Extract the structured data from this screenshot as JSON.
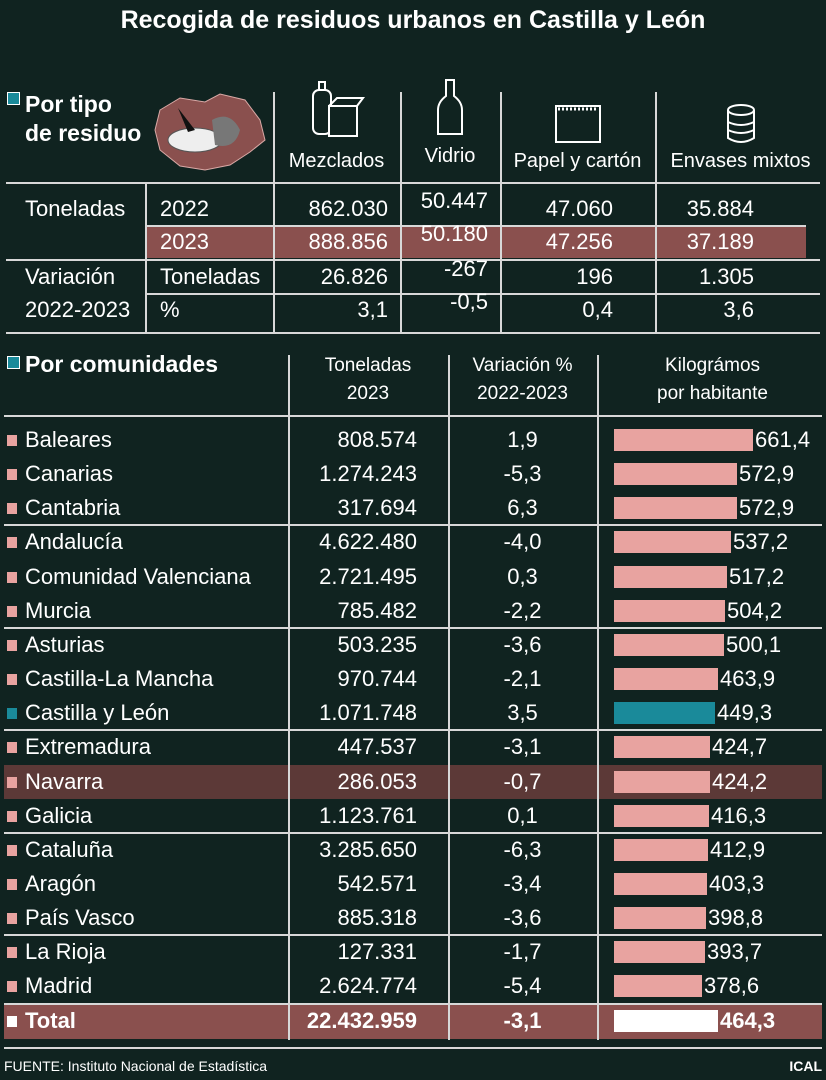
{
  "title": "Recogida de residuos urbanos en Castilla y León",
  "colors": {
    "background": "#102320",
    "highlight": "#8a504e",
    "bar": "#e8a3a0",
    "castilla_leon_bar": "#1a8a9a",
    "total_bar": "#ffffff"
  },
  "tipo": {
    "heading_line1": "Por tipo",
    "heading_line2": "de residuo",
    "columns": [
      {
        "label": "Mezclados",
        "icon": "bottle-and-carton-icon"
      },
      {
        "label": "Vidrio",
        "icon": "glass-bottle-icon"
      },
      {
        "label": "Papel y cartón",
        "icon": "notepad-icon"
      },
      {
        "label": "Envases mixtos",
        "icon": "can-icon"
      }
    ],
    "toneladas_label": "Toneladas",
    "variacion_label": "Variación",
    "variacion_years": "2022-2023",
    "rows": [
      {
        "label": "2022",
        "values": [
          "862.030",
          "50.447",
          "47.060",
          "35.884"
        ]
      },
      {
        "label": "2023",
        "values": [
          "888.856",
          "50.180",
          "47.256",
          "37.189"
        ]
      },
      {
        "label": "Toneladas",
        "values": [
          "26.826",
          "-267",
          "196",
          "1.305"
        ]
      },
      {
        "label": "%",
        "values": [
          "3,1",
          "-0,5",
          "0,4",
          "3,6"
        ]
      }
    ]
  },
  "comunidades": {
    "heading": "Por comunidades",
    "col_toneladas": [
      "Toneladas",
      "2023"
    ],
    "col_variacion": [
      "Variación %",
      "2022-2023"
    ],
    "col_kg": [
      "Kilográmos",
      "por habitante"
    ]
  },
  "chart_data": {
    "type": "bar",
    "orientation": "horizontal",
    "categories": [
      "Baleares",
      "Canarias",
      "Cantabria",
      "Andalucía",
      "Comunidad Valenciana",
      "Murcia",
      "Asturias",
      "Castilla-La Mancha",
      "Castilla y León",
      "Extremadura",
      "Navarra",
      "Galicia",
      "Cataluña",
      "Aragón",
      "País Vasco",
      "La Rioja",
      "Madrid",
      "Total"
    ],
    "toneladas_2023": [
      "808.574",
      "1.274.243",
      "317.694",
      "4.622.480",
      "2.721.495",
      "785.482",
      "503.235",
      "970.744",
      "1.071.748",
      "447.537",
      "286.053",
      "1.123.761",
      "3.285.650",
      "542.571",
      "885.318",
      "127.331",
      "2.624.774",
      "22.432.959"
    ],
    "variacion_pct": [
      "1,9",
      "-5,3",
      "6,3",
      "-4,0",
      "0,3",
      "-2,2",
      "-3,6",
      "-2,1",
      "3,5",
      "-3,1",
      "-0,7",
      "0,1",
      "-6,3",
      "-3,4",
      "-3,6",
      "-1,7",
      "-5,4",
      "-3,1"
    ],
    "kg_labels": [
      "661,4",
      "572,9",
      "572,9",
      "537,2",
      "517,2",
      "504,2",
      "500,1",
      "463,9",
      "449,3",
      "424,7",
      "424,2",
      "416,3",
      "412,9",
      "403,3",
      "398,8",
      "393,7",
      "378,6",
      "464,3"
    ],
    "values": [
      661.4,
      572.9,
      572.9,
      537.2,
      517.2,
      504.2,
      500.1,
      463.9,
      449.3,
      424.7,
      424.2,
      416.3,
      412.9,
      403.3,
      398.8,
      393.7,
      378.6,
      464.3
    ],
    "highlight": [
      "Castilla y León",
      "Navarra",
      "Total"
    ]
  },
  "footer": {
    "source": "FUENTE: Instituto Nacional de Estadística",
    "brand": "ICAL"
  }
}
